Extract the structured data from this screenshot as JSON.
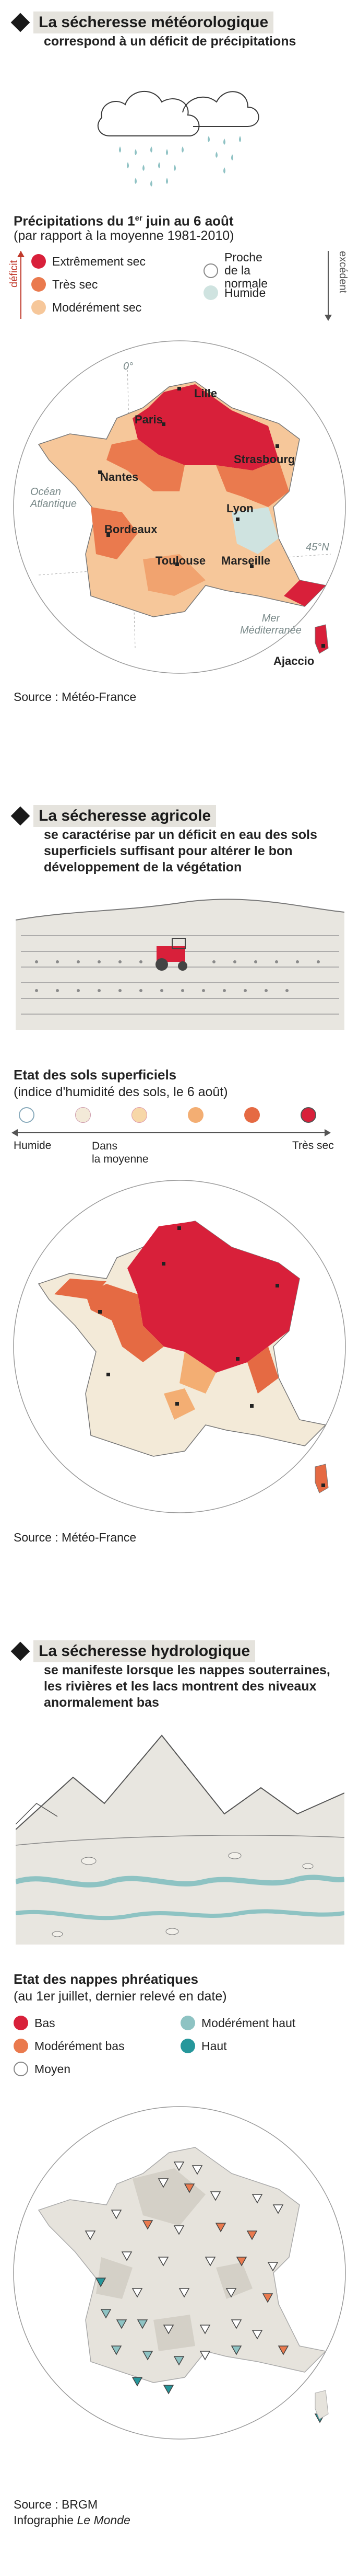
{
  "section1": {
    "title": "La sécheresse météorologique",
    "subtitle": "correspond à un déficit de précipitations",
    "legend_title_pre": "Précipitations du 1",
    "legend_title_sup": "er",
    "legend_title_post": " juin au 6 août",
    "legend_subtitle": "(par rapport à la moyenne 1981-2010)",
    "axis_left": "déficit",
    "axis_right": "excédent",
    "legend": [
      {
        "label": "Extrêmement sec",
        "color": "#d8203a"
      },
      {
        "label": "Très sec",
        "color": "#ea7a4e"
      },
      {
        "label": "Modérément sec",
        "color": "#f6c79a"
      },
      {
        "label_line1": "Proche",
        "label_line2": "de la normale",
        "color": "#ffffff"
      },
      {
        "label": "Humide",
        "color": "#cfe3e0"
      }
    ],
    "map_labels": {
      "lille": "Lille",
      "paris": "Paris",
      "strasbourg": "Strasbourg",
      "nantes": "Nantes",
      "lyon": "Lyon",
      "bordeaux": "Bordeaux",
      "toulouse": "Toulouse",
      "marseille": "Marseille",
      "ajaccio": "Ajaccio",
      "ocean_line1": "Océan",
      "ocean_line2": "Atlantique",
      "mer_line1": "Mer",
      "mer_line2": "Méditerranée",
      "meridian": "0°",
      "parallel": "45°N"
    },
    "source": "Source : Météo-France"
  },
  "section2": {
    "title": "La sécheresse agricole",
    "subtitle_lines": [
      "se caractérise par un déficit en eau des sols",
      "superficiels suffisant pour altérer le bon",
      "développement de la végétation"
    ],
    "legend_title": "Etat des sols superficiels",
    "legend_subtitle": "(indice d'humidité des sols, le 6 août)",
    "scale_colors": [
      "#ffffff",
      "#f3ead8",
      "#f7d7a8",
      "#f3ae73",
      "#e56a43",
      "#d8203a"
    ],
    "scale_labels": {
      "humide": "Humide",
      "moyenne_line1": "Dans",
      "moyenne_line2": "la moyenne",
      "tres_sec": "Très sec"
    },
    "source": "Source : Météo-France"
  },
  "section3": {
    "title": "La sécheresse hydrologique",
    "subtitle_lines": [
      "se manifeste lorsque les nappes souterraines,",
      "les rivières et les lacs montrent des niveaux",
      "anormalement bas"
    ],
    "legend_title": "Etat des nappes phréatiques",
    "legend_subtitle": "(au 1er juillet, dernier relevé en date)",
    "legend": [
      {
        "label": "Bas",
        "color": "#d8203a"
      },
      {
        "label": "Modérément bas",
        "color": "#ea7a4e"
      },
      {
        "label": "Moyen",
        "color": "#ffffff"
      },
      {
        "label": "Modérément haut",
        "color": "#8ec3c3"
      },
      {
        "label": "Haut",
        "color": "#26979b"
      }
    ],
    "source": "Source : BRGM",
    "credit_pre": "Infographie ",
    "credit_em": "Le Monde"
  }
}
